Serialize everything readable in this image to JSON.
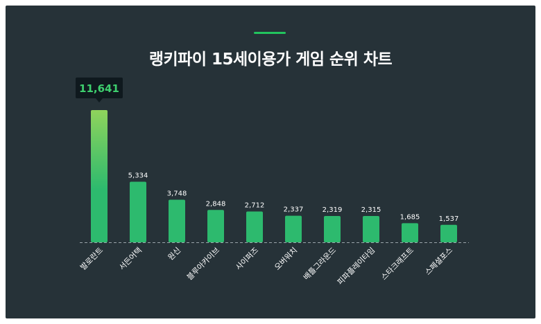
{
  "chart_data": {
    "type": "bar",
    "title": "랭키파이 15세이용가 게임 순위 차트",
    "xlabel": "",
    "ylabel": "",
    "categories": [
      "발로란트",
      "서든어택",
      "원신",
      "블루아카이브",
      "사이퍼즈",
      "오버워치",
      "배틀그라운드",
      "피파플레이타임",
      "스타크래프트",
      "스페셜포스"
    ],
    "values": [
      11641,
      5334,
      3748,
      2848,
      2712,
      2337,
      2319,
      2315,
      1685,
      1537
    ],
    "value_labels": [
      "11,641",
      "5,334",
      "3,748",
      "2,848",
      "2,712",
      "2,337",
      "2,319",
      "2,315",
      "1,685",
      "1,537"
    ],
    "ylim": [
      0,
      11641
    ],
    "grid": false,
    "highlight_index": 0,
    "colors": {
      "background": "#263238",
      "bar": "#2dba6e",
      "bar_highlight_top": "#8fd35c",
      "accent": "#22c55e",
      "tooltip_bg": "#0f191e",
      "tooltip_text": "#3ecf6e",
      "text": "#ffffff",
      "baseline": "#9aa5ab"
    }
  }
}
